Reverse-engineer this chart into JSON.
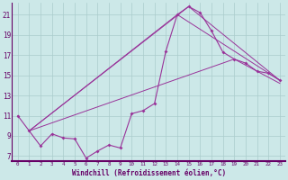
{
  "xlabel": "Windchill (Refroidissement éolien,°C)",
  "background_color": "#cce8e8",
  "line_color": "#993399",
  "grid_color": "#aacccc",
  "text_color": "#660066",
  "border_color": "#660066",
  "xlim": [
    -0.5,
    23.5
  ],
  "ylim": [
    6.5,
    22.2
  ],
  "yticks": [
    7,
    9,
    11,
    13,
    15,
    17,
    19,
    21
  ],
  "xticks": [
    0,
    1,
    2,
    3,
    4,
    5,
    6,
    7,
    8,
    9,
    10,
    11,
    12,
    13,
    14,
    15,
    16,
    17,
    18,
    19,
    20,
    21,
    22,
    23
  ],
  "line1_x": [
    0,
    1,
    2,
    3,
    4,
    5,
    6,
    7,
    8,
    9,
    10,
    11,
    12,
    13,
    14,
    15,
    16,
    17,
    18,
    19,
    20,
    21,
    22,
    23
  ],
  "line1_y": [
    11.0,
    9.5,
    8.0,
    9.2,
    8.8,
    8.7,
    6.8,
    7.5,
    8.1,
    7.8,
    11.2,
    11.5,
    12.2,
    17.4,
    21.0,
    21.8,
    21.2,
    19.4,
    17.3,
    16.6,
    16.2,
    15.4,
    15.2,
    14.5
  ],
  "line2_x": [
    1,
    14,
    23
  ],
  "line2_y": [
    9.5,
    21.0,
    14.5
  ],
  "line3_x": [
    1,
    15,
    23
  ],
  "line3_y": [
    9.5,
    21.8,
    14.5
  ],
  "line4_x": [
    1,
    19,
    23
  ],
  "line4_y": [
    9.5,
    16.6,
    14.2
  ]
}
